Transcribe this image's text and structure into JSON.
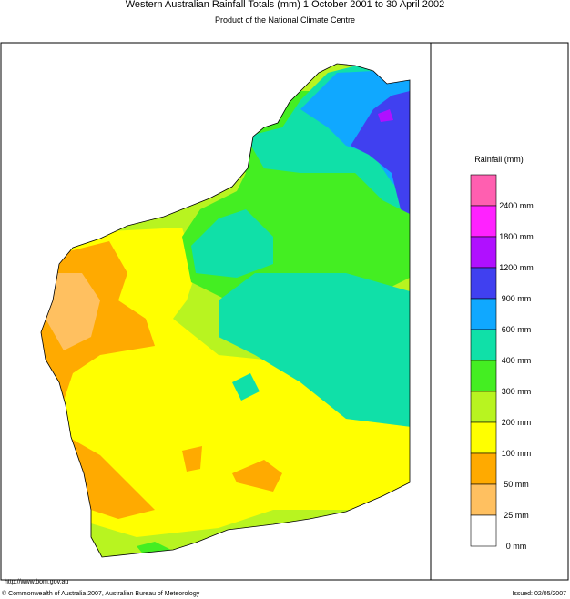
{
  "header": {
    "title": "Western Australian Rainfall Totals (mm) 1 October 2001 to 30 April 2002",
    "subtitle": "Product of the National Climate Centre"
  },
  "legend": {
    "title": "Rainfall (mm)",
    "items": [
      {
        "color": "#ff5fb0",
        "label": "2400 mm"
      },
      {
        "color": "#ff22ff",
        "label": "1800 mm"
      },
      {
        "color": "#b010ff",
        "label": "1200 mm"
      },
      {
        "color": "#4040f0",
        "label": "900 mm"
      },
      {
        "color": "#10a8ff",
        "label": "600 mm"
      },
      {
        "color": "#10e0a8",
        "label": "400 mm"
      },
      {
        "color": "#44ee22",
        "label": "300 mm"
      },
      {
        "color": "#b8f420",
        "label": "200 mm"
      },
      {
        "color": "#ffff00",
        "label": "100 mm"
      },
      {
        "color": "#ffaa00",
        "label": "50 mm"
      },
      {
        "color": "#ffc060",
        "label": "25 mm"
      },
      {
        "color": "#ffffff",
        "label": "0 mm"
      }
    ]
  },
  "footer": {
    "url": "http://www.bom.gov.au",
    "copyright": "© Commonwealth of Australia 2007, Australian Bureau of Meteorology",
    "issued": "Issued: 02/05/2007"
  }
}
